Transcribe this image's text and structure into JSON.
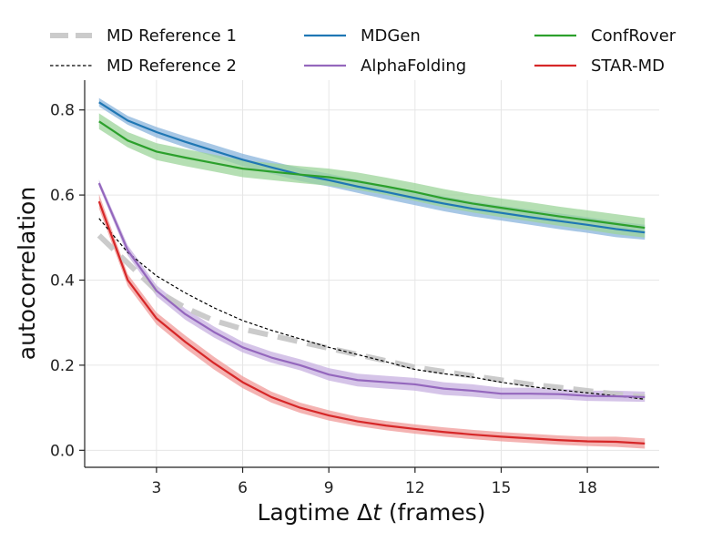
{
  "chart_data": {
    "type": "line",
    "xlabel": "Lagtime Δ",
    "xlabel_italic": "t",
    "xlabel_suffix": " (frames)",
    "ylabel": "autocorrelation",
    "xlim": [
      0.5,
      20.5
    ],
    "ylim": [
      -0.04,
      0.87
    ],
    "xticks": [
      3,
      6,
      9,
      12,
      15,
      18
    ],
    "yticks": [
      0.0,
      0.2,
      0.4,
      0.6,
      0.8
    ],
    "ytick_labels": [
      "0.0",
      "0.2",
      "0.4",
      "0.6",
      "0.8"
    ],
    "grid": true,
    "legend_position": "top",
    "x": [
      1,
      2,
      3,
      4,
      5,
      6,
      7,
      8,
      9,
      10,
      11,
      12,
      13,
      14,
      15,
      16,
      17,
      18,
      19,
      20
    ],
    "series": [
      {
        "name": "MD Reference 1",
        "color": "#c8c8c8",
        "style": "thick-dash",
        "values": [
          0.505,
          0.44,
          0.375,
          0.335,
          0.305,
          0.285,
          0.27,
          0.255,
          0.24,
          0.225,
          0.21,
          0.195,
          0.185,
          0.175,
          0.165,
          0.155,
          0.148,
          0.14,
          0.132,
          0.125
        ]
      },
      {
        "name": "MD Reference 2",
        "color": "#000000",
        "style": "thin-dash",
        "values": [
          0.545,
          0.465,
          0.41,
          0.37,
          0.335,
          0.305,
          0.282,
          0.262,
          0.242,
          0.225,
          0.208,
          0.19,
          0.18,
          0.172,
          0.16,
          0.15,
          0.142,
          0.135,
          0.128,
          0.12
        ]
      },
      {
        "name": "MDGen",
        "color": "#1f77b4",
        "band_color": "#8ab4dc",
        "style": "solid",
        "values": [
          0.818,
          0.775,
          0.748,
          0.725,
          0.704,
          0.683,
          0.665,
          0.648,
          0.635,
          0.62,
          0.607,
          0.593,
          0.58,
          0.568,
          0.558,
          0.548,
          0.539,
          0.53,
          0.52,
          0.512
        ],
        "lower": [
          0.808,
          0.765,
          0.735,
          0.712,
          0.69,
          0.668,
          0.65,
          0.633,
          0.62,
          0.605,
          0.59,
          0.576,
          0.562,
          0.55,
          0.54,
          0.53,
          0.52,
          0.511,
          0.501,
          0.495
        ],
        "upper": [
          0.828,
          0.786,
          0.76,
          0.738,
          0.718,
          0.697,
          0.68,
          0.663,
          0.65,
          0.636,
          0.622,
          0.609,
          0.597,
          0.585,
          0.575,
          0.566,
          0.557,
          0.548,
          0.538,
          0.53
        ]
      },
      {
        "name": "AlphaFolding",
        "color": "#9467bd",
        "band_color": "#c7b0e0",
        "style": "solid",
        "values": [
          0.628,
          0.47,
          0.375,
          0.32,
          0.278,
          0.242,
          0.218,
          0.2,
          0.178,
          0.165,
          0.16,
          0.155,
          0.145,
          0.14,
          0.133,
          0.133,
          0.132,
          0.128,
          0.127,
          0.125
        ],
        "lower": [
          0.62,
          0.458,
          0.362,
          0.307,
          0.265,
          0.23,
          0.206,
          0.188,
          0.164,
          0.15,
          0.145,
          0.14,
          0.13,
          0.126,
          0.12,
          0.12,
          0.12,
          0.116,
          0.115,
          0.114
        ],
        "upper": [
          0.636,
          0.482,
          0.388,
          0.333,
          0.291,
          0.255,
          0.232,
          0.214,
          0.193,
          0.18,
          0.175,
          0.17,
          0.16,
          0.155,
          0.147,
          0.147,
          0.145,
          0.14,
          0.14,
          0.138
        ]
      },
      {
        "name": "ConfRover",
        "color": "#2ca02c",
        "band_color": "#9cd49a",
        "style": "solid",
        "values": [
          0.773,
          0.728,
          0.702,
          0.688,
          0.675,
          0.662,
          0.655,
          0.648,
          0.642,
          0.632,
          0.62,
          0.607,
          0.592,
          0.58,
          0.57,
          0.56,
          0.55,
          0.541,
          0.532,
          0.523
        ],
        "lower": [
          0.755,
          0.712,
          0.682,
          0.668,
          0.655,
          0.642,
          0.635,
          0.628,
          0.622,
          0.612,
          0.6,
          0.586,
          0.571,
          0.559,
          0.548,
          0.538,
          0.528,
          0.518,
          0.508,
          0.5
        ],
        "upper": [
          0.792,
          0.748,
          0.722,
          0.708,
          0.695,
          0.682,
          0.675,
          0.668,
          0.662,
          0.653,
          0.641,
          0.628,
          0.614,
          0.602,
          0.592,
          0.583,
          0.573,
          0.564,
          0.555,
          0.546
        ]
      },
      {
        "name": "STAR-MD",
        "color": "#d62728",
        "band_color": "#f09a98",
        "style": "solid",
        "values": [
          0.585,
          0.4,
          0.31,
          0.255,
          0.205,
          0.16,
          0.125,
          0.1,
          0.082,
          0.068,
          0.058,
          0.05,
          0.043,
          0.037,
          0.032,
          0.028,
          0.024,
          0.021,
          0.02,
          0.016
        ],
        "lower": [
          0.568,
          0.386,
          0.296,
          0.24,
          0.19,
          0.146,
          0.112,
          0.088,
          0.07,
          0.057,
          0.047,
          0.039,
          0.032,
          0.026,
          0.021,
          0.017,
          0.013,
          0.01,
          0.008,
          0.004
        ],
        "upper": [
          0.602,
          0.414,
          0.324,
          0.27,
          0.22,
          0.174,
          0.138,
          0.112,
          0.094,
          0.079,
          0.069,
          0.061,
          0.054,
          0.048,
          0.043,
          0.039,
          0.035,
          0.032,
          0.032,
          0.028
        ]
      }
    ]
  }
}
